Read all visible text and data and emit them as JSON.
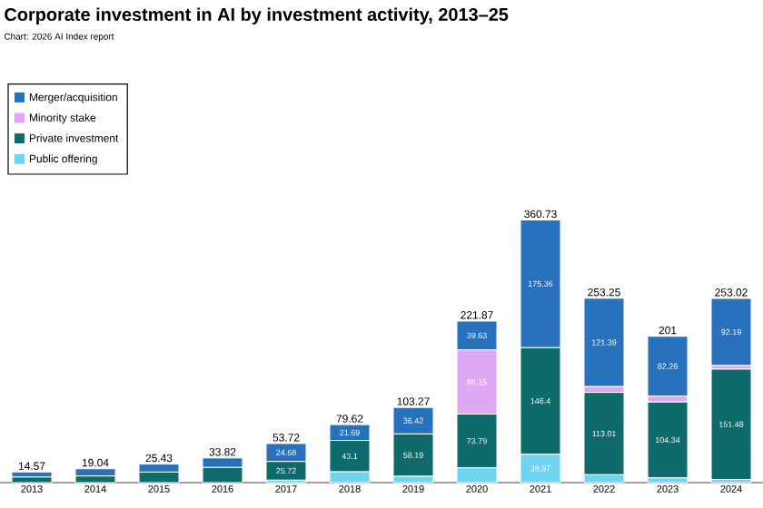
{
  "chart_data": {
    "type": "bar",
    "stacked": true,
    "title": "Corporate investment in AI by investment activity, 2013–25",
    "subtitle": "Chart: 2026 AI Index report",
    "categories": [
      "2013",
      "2014",
      "2015",
      "2016",
      "2017",
      "2018",
      "2019",
      "2020",
      "2021",
      "2022",
      "2023",
      "2024"
    ],
    "series": [
      {
        "name": "Public offering",
        "color": "#6fd3f2",
        "values": [
          0,
          0,
          0,
          0,
          3.32,
          14.83,
          8.66,
          20.3,
          38.97,
          10.85,
          6.4,
          4.35
        ],
        "value_labels": [
          null,
          null,
          null,
          null,
          null,
          null,
          null,
          null,
          "38.97",
          null,
          null,
          null
        ]
      },
      {
        "name": "Private investment",
        "color": "#0f6b6b",
        "values": [
          7.57,
          9.04,
          14.43,
          20.82,
          25.72,
          43.1,
          58.19,
          73.79,
          146.4,
          113.01,
          104.34,
          151.48
        ],
        "value_labels": [
          null,
          null,
          null,
          null,
          "25.72",
          "43.1",
          "58.19",
          "73.79",
          "146.4",
          "113.01",
          "104.34",
          "151.48"
        ]
      },
      {
        "name": "Minority stake",
        "color": "#e0a8f4",
        "values": [
          0,
          0,
          0,
          0,
          0,
          0,
          0,
          88.15,
          null,
          8,
          8,
          5
        ],
        "value_labels": [
          null,
          null,
          null,
          null,
          null,
          null,
          null,
          "88.15",
          null,
          null,
          null,
          null
        ]
      },
      {
        "name": "Merger/acquisition",
        "color": "#2872bd",
        "values": [
          7,
          10,
          11,
          13,
          24.68,
          21.69,
          36.42,
          39.63,
          175.36,
          121.39,
          82.26,
          92.19
        ],
        "value_labels": [
          null,
          null,
          null,
          null,
          "24.68",
          "21.69",
          "36.42",
          "39.63",
          "175.36",
          "121.39",
          "82.26",
          "92.19"
        ]
      }
    ],
    "totals": [
      "14.57",
      "19.04",
      "25.43",
      "33.82",
      "53.72",
      "79.62",
      "103.27",
      "221.87",
      "360.73",
      "253.25",
      "201",
      "253.02"
    ],
    "legend": "top left"
  }
}
